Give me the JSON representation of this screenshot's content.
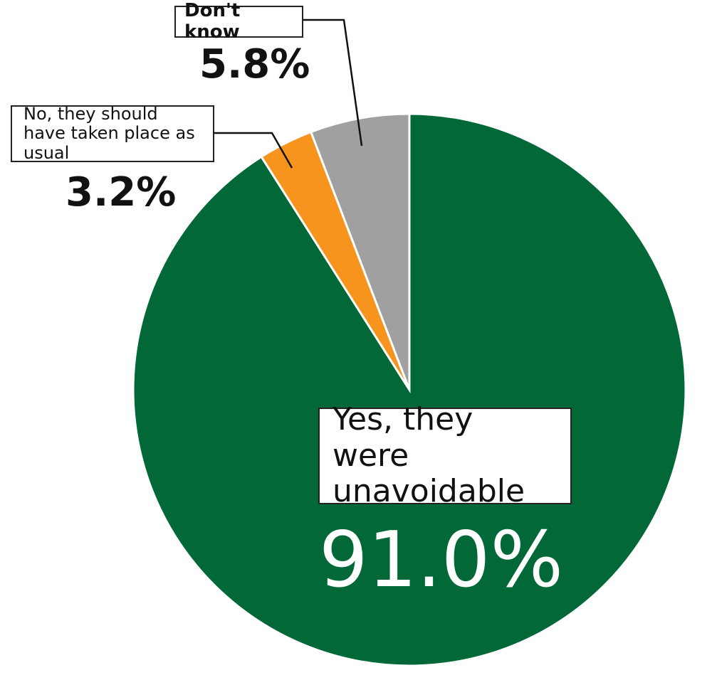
{
  "chart_data": {
    "type": "pie",
    "categories": [
      "Yes, they were unavoidable",
      "No, they should have taken place as usual",
      "Don't know"
    ],
    "values": [
      91.0,
      3.2,
      5.8
    ],
    "value_labels": [
      "91.0%",
      "3.2%",
      "5.8%"
    ],
    "colors": [
      "#036838",
      "#f7941d",
      "#a0a0a0"
    ]
  }
}
